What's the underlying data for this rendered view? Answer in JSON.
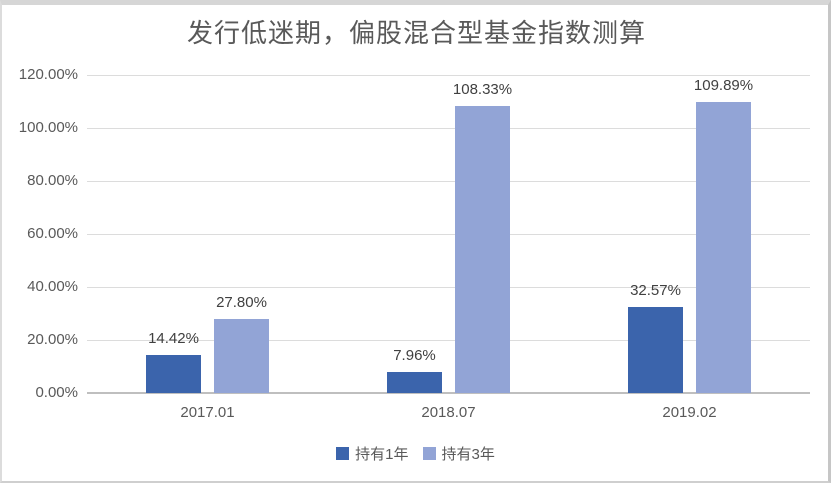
{
  "title": "发行低迷期，偏股混合型基金指数测算",
  "chart_data": {
    "type": "bar",
    "title": "发行低迷期，偏股混合型基金指数测算",
    "categories": [
      "2017.01",
      "2018.07",
      "2019.02"
    ],
    "series": [
      {
        "name": "持有1年",
        "color": "#3B64AC",
        "values": [
          14.42,
          7.96,
          32.57
        ]
      },
      {
        "name": "持有3年",
        "color": "#92A4D6",
        "values": [
          27.8,
          108.33,
          109.89
        ]
      }
    ],
    "data_labels": [
      [
        "14.42%",
        "7.96%",
        "32.57%"
      ],
      [
        "27.80%",
        "108.33%",
        "109.89%"
      ]
    ],
    "ylim": [
      0,
      120
    ],
    "yticks": [
      "0.00%",
      "20.00%",
      "40.00%",
      "60.00%",
      "80.00%",
      "100.00%",
      "120.00%"
    ],
    "grid": true,
    "legend_position": "bottom",
    "legend": [
      "持有1年",
      "持有3年"
    ]
  },
  "style": {
    "gridline_color": "#dcdcdc",
    "axis_line_color": "#bfbfbf",
    "tick_label_color": "#595959",
    "data_label_color": "#404040",
    "title_color": "#595959",
    "frame_border_color": "#cccccc",
    "background": "#ffffff",
    "series1_color": "#3B64AC",
    "series2_color": "#92A4D6"
  }
}
